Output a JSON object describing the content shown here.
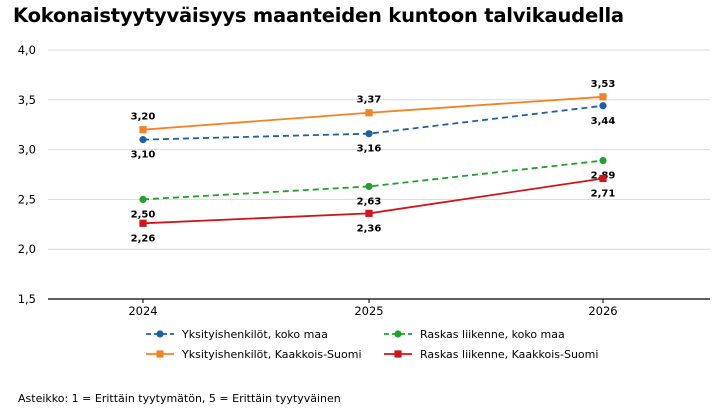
{
  "chart_data": {
    "type": "line",
    "title": "Kokonaistyytyväisyys maanteiden kuntoon talvikaudella",
    "x": [
      "2024",
      "2025",
      "2026"
    ],
    "ylim": [
      1.5,
      4.0
    ],
    "yticks": [
      "4,0",
      "3,5",
      "3,0",
      "2,5",
      "2,0",
      "1,5"
    ],
    "ytick_values": [
      4.0,
      3.5,
      3.0,
      2.5,
      2.0,
      1.5
    ],
    "grid": true,
    "legend_position": "bottom",
    "series": [
      {
        "name": "Yksityishenkilöt, koko maa",
        "values": [
          3.1,
          3.16,
          3.44
        ],
        "labels": [
          "3,10",
          "3,16",
          "3,44"
        ],
        "color": "#1f5fa6",
        "dashed": true,
        "marker": "circle",
        "label_side": "below"
      },
      {
        "name": "Yksityishenkilöt, Kaakkois-Suomi",
        "values": [
          3.2,
          3.37,
          3.53
        ],
        "labels": [
          "3,20",
          "3,37",
          "3,53"
        ],
        "color": "#f28322",
        "dashed": false,
        "marker": "square",
        "label_side": "above"
      },
      {
        "name": "Raskas liikenne, koko maa",
        "values": [
          2.5,
          2.63,
          2.89
        ],
        "labels": [
          "2,50",
          "2,63",
          "2,89"
        ],
        "color": "#22a02c",
        "dashed": true,
        "marker": "circle",
        "label_side": "below"
      },
      {
        "name": "Raskas liikenne, Kaakkois-Suomi",
        "values": [
          2.26,
          2.36,
          2.71
        ],
        "labels": [
          "2,26",
          "2,36",
          "2,71"
        ],
        "color": "#d0141a",
        "dashed": false,
        "marker": "square",
        "label_side": "below"
      }
    ],
    "footnote": "Asteikko: 1 = Erittäin tyytymätön, 5 = Erittäin tyytyväinen"
  }
}
